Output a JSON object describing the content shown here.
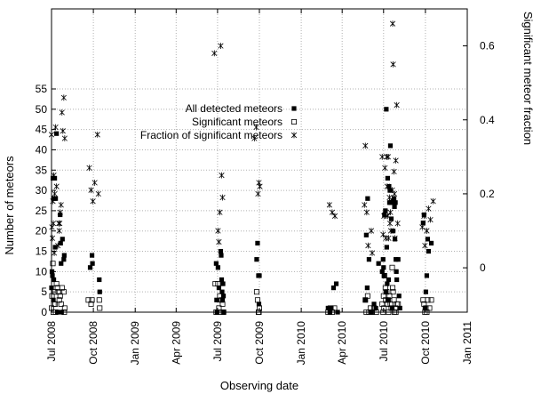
{
  "chart_data": {
    "type": "scatter",
    "xlabel": "Observing date",
    "ylabel": "Number of meteors",
    "y2label": "Significant meteor fraction",
    "x_ticks": [
      {
        "date": "2008-07-01",
        "label": "Jul 2008"
      },
      {
        "date": "2008-10-01",
        "label": "Oct 2008"
      },
      {
        "date": "2009-01-01",
        "label": "Jan 2009"
      },
      {
        "date": "2009-04-01",
        "label": "Apr 2009"
      },
      {
        "date": "2009-07-01",
        "label": "Jul 2009"
      },
      {
        "date": "2009-10-01",
        "label": "Oct 2009"
      },
      {
        "date": "2010-01-01",
        "label": "Jan 2010"
      },
      {
        "date": "2010-04-01",
        "label": "Apr 2010"
      },
      {
        "date": "2010-07-01",
        "label": "Jul 2010"
      },
      {
        "date": "2010-10-01",
        "label": "Oct 2010"
      },
      {
        "date": "2011-01-01",
        "label": "Jan 2011"
      }
    ],
    "xlim": [
      "2008-07-01",
      "2011-01-01"
    ],
    "ylim": [
      0,
      55
    ],
    "y_ticks": [
      0,
      5,
      10,
      15,
      20,
      25,
      30,
      35,
      40,
      45,
      50,
      55
    ],
    "y2_ticks": [
      0,
      0.2,
      0.4,
      0.6
    ],
    "y2_tick_labels": [
      "0",
      "0.2",
      "0.4",
      "0.6"
    ],
    "y2lim": [
      -0.12,
      0.7
    ],
    "grid": true,
    "legend_position": "top-right",
    "legend": [
      "All detected meteors",
      "Significant meteors",
      "Fraction of significant meteors"
    ],
    "series": [
      {
        "name": "All detected meteors",
        "axis": "left",
        "marker": "filled-square",
        "points": [
          [
            "2008-07-01",
            6
          ],
          [
            "2008-07-02",
            10
          ],
          [
            "2008-07-03",
            9
          ],
          [
            "2008-07-04",
            33
          ],
          [
            "2008-07-05",
            3
          ],
          [
            "2008-07-06",
            8
          ],
          [
            "2008-07-07",
            28
          ],
          [
            "2008-07-08",
            33
          ],
          [
            "2008-07-09",
            16
          ],
          [
            "2008-07-10",
            28
          ],
          [
            "2008-07-12",
            44
          ],
          [
            "2008-07-14",
            0
          ],
          [
            "2008-07-20",
            24
          ],
          [
            "2008-07-21",
            17
          ],
          [
            "2008-07-22",
            12
          ],
          [
            "2008-07-23",
            0
          ],
          [
            "2008-07-25",
            18
          ],
          [
            "2008-07-28",
            13
          ],
          [
            "2008-07-29",
            14
          ],
          [
            "2008-09-24",
            11
          ],
          [
            "2008-09-28",
            14
          ],
          [
            "2008-09-29",
            12
          ],
          [
            "2008-10-14",
            8
          ],
          [
            "2008-10-15",
            5
          ],
          [
            "2009-06-28",
            12
          ],
          [
            "2009-06-29",
            3
          ],
          [
            "2009-06-30",
            0
          ],
          [
            "2009-07-02",
            11
          ],
          [
            "2009-07-04",
            6
          ],
          [
            "2009-07-08",
            15
          ],
          [
            "2009-07-09",
            14
          ],
          [
            "2009-07-10",
            8
          ],
          [
            "2009-07-11",
            5
          ],
          [
            "2009-07-12",
            3
          ],
          [
            "2009-07-13",
            7
          ],
          [
            "2009-07-14",
            4
          ],
          [
            "2009-07-15",
            0
          ],
          [
            "2009-09-25",
            13
          ],
          [
            "2009-09-27",
            17
          ],
          [
            "2009-09-29",
            9
          ],
          [
            "2009-09-30",
            2
          ],
          [
            "2009-10-01",
            9
          ],
          [
            "2010-03-01",
            1
          ],
          [
            "2010-03-05",
            0
          ],
          [
            "2010-03-08",
            1
          ],
          [
            "2010-03-13",
            6
          ],
          [
            "2010-03-19",
            7
          ],
          [
            "2010-03-22",
            0
          ],
          [
            "2010-05-22",
            3
          ],
          [
            "2010-05-24",
            19
          ],
          [
            "2010-05-26",
            6
          ],
          [
            "2010-05-27",
            28
          ],
          [
            "2010-05-30",
            13
          ],
          [
            "2010-06-04",
            0
          ],
          [
            "2010-06-10",
            2
          ],
          [
            "2010-06-14",
            1
          ],
          [
            "2010-06-20",
            12
          ],
          [
            "2010-06-28",
            10
          ],
          [
            "2010-06-30",
            13
          ],
          [
            "2010-07-01",
            11
          ],
          [
            "2010-07-02",
            9
          ],
          [
            "2010-07-03",
            24
          ],
          [
            "2010-07-05",
            25
          ],
          [
            "2010-07-06",
            5
          ],
          [
            "2010-07-07",
            50
          ],
          [
            "2010-07-08",
            16
          ],
          [
            "2010-07-09",
            7
          ],
          [
            "2010-07-10",
            33
          ],
          [
            "2010-07-11",
            3
          ],
          [
            "2010-07-12",
            8
          ],
          [
            "2010-07-13",
            31
          ],
          [
            "2010-07-14",
            27
          ],
          [
            "2010-07-15",
            30
          ],
          [
            "2010-07-16",
            41
          ],
          [
            "2010-07-17",
            27
          ],
          [
            "2010-07-18",
            23
          ],
          [
            "2010-07-20",
            1
          ],
          [
            "2010-07-22",
            20
          ],
          [
            "2010-07-24",
            28
          ],
          [
            "2010-07-25",
            26
          ],
          [
            "2010-07-26",
            18
          ],
          [
            "2010-07-27",
            27
          ],
          [
            "2010-07-28",
            13
          ],
          [
            "2010-07-29",
            10
          ],
          [
            "2010-07-30",
            8
          ],
          [
            "2010-08-02",
            13
          ],
          [
            "2010-08-04",
            4
          ],
          [
            "2010-08-06",
            1
          ],
          [
            "2010-09-26",
            22
          ],
          [
            "2010-09-28",
            24
          ],
          [
            "2010-09-30",
            1
          ],
          [
            "2010-10-02",
            5
          ],
          [
            "2010-10-04",
            9
          ],
          [
            "2010-10-06",
            18
          ],
          [
            "2010-10-08",
            15
          ],
          [
            "2010-10-14",
            17
          ]
        ]
      },
      {
        "name": "Significant meteors",
        "axis": "left",
        "marker": "open-square",
        "points": [
          [
            "2008-07-01",
            1
          ],
          [
            "2008-07-02",
            4
          ],
          [
            "2008-07-04",
            12
          ],
          [
            "2008-07-05",
            0
          ],
          [
            "2008-07-06",
            2
          ],
          [
            "2008-07-08",
            5
          ],
          [
            "2008-07-09",
            2
          ],
          [
            "2008-07-10",
            0
          ],
          [
            "2008-07-12",
            7
          ],
          [
            "2008-07-14",
            6
          ],
          [
            "2008-07-16",
            5
          ],
          [
            "2008-07-18",
            3
          ],
          [
            "2008-07-20",
            4
          ],
          [
            "2008-07-22",
            2
          ],
          [
            "2008-07-24",
            6
          ],
          [
            "2008-07-28",
            5
          ],
          [
            "2008-07-29",
            0
          ],
          [
            "2008-07-30",
            1
          ],
          [
            "2008-09-20",
            3
          ],
          [
            "2008-09-26",
            2
          ],
          [
            "2008-09-28",
            3
          ],
          [
            "2008-10-14",
            3
          ],
          [
            "2008-10-15",
            1
          ],
          [
            "2009-06-26",
            7
          ],
          [
            "2009-06-28",
            0
          ],
          [
            "2009-07-02",
            7
          ],
          [
            "2009-07-04",
            1
          ],
          [
            "2009-07-06",
            4
          ],
          [
            "2009-07-08",
            0
          ],
          [
            "2009-07-10",
            3
          ],
          [
            "2009-07-12",
            2
          ],
          [
            "2009-07-14",
            0
          ],
          [
            "2009-09-25",
            5
          ],
          [
            "2009-09-27",
            3
          ],
          [
            "2009-09-29",
            0
          ],
          [
            "2009-09-30",
            0
          ],
          [
            "2009-10-01",
            1
          ],
          [
            "2010-03-01",
            0
          ],
          [
            "2010-03-06",
            1
          ],
          [
            "2010-03-10",
            0
          ],
          [
            "2010-03-15",
            1
          ],
          [
            "2010-05-22",
            3
          ],
          [
            "2010-05-24",
            0
          ],
          [
            "2010-05-27",
            4
          ],
          [
            "2010-05-30",
            0
          ],
          [
            "2010-06-02",
            1
          ],
          [
            "2010-06-06",
            0
          ],
          [
            "2010-06-10",
            1
          ],
          [
            "2010-06-15",
            0
          ],
          [
            "2010-06-28",
            2
          ],
          [
            "2010-06-30",
            0
          ],
          [
            "2010-07-01",
            4
          ],
          [
            "2010-07-02",
            1
          ],
          [
            "2010-07-03",
            9
          ],
          [
            "2010-07-05",
            6
          ],
          [
            "2010-07-06",
            3
          ],
          [
            "2010-07-08",
            5
          ],
          [
            "2010-07-09",
            2
          ],
          [
            "2010-07-11",
            3
          ],
          [
            "2010-07-12",
            0
          ],
          [
            "2010-07-14",
            4
          ],
          [
            "2010-07-16",
            2
          ],
          [
            "2010-07-18",
            1
          ],
          [
            "2010-07-20",
            11
          ],
          [
            "2010-07-21",
            6
          ],
          [
            "2010-07-22",
            5
          ],
          [
            "2010-07-24",
            3
          ],
          [
            "2010-07-25",
            0
          ],
          [
            "2010-07-27",
            1
          ],
          [
            "2010-07-28",
            0
          ],
          [
            "2010-07-30",
            2
          ],
          [
            "2010-08-02",
            2
          ],
          [
            "2010-09-26",
            3
          ],
          [
            "2010-09-28",
            2
          ],
          [
            "2010-09-30",
            0
          ],
          [
            "2010-10-02",
            1
          ],
          [
            "2010-10-04",
            0
          ],
          [
            "2010-10-06",
            3
          ],
          [
            "2010-10-10",
            1
          ],
          [
            "2010-10-14",
            3
          ]
        ]
      },
      {
        "name": "Fraction of significant meteors",
        "axis": "right",
        "marker": "star",
        "points": [
          [
            "2008-07-01",
            0.36
          ],
          [
            "2008-07-02",
            0.11
          ],
          [
            "2008-07-03",
            0.08
          ],
          [
            "2008-07-04",
            0.18
          ],
          [
            "2008-07-05",
            0.12
          ],
          [
            "2008-07-06",
            0.25
          ],
          [
            "2008-07-07",
            0.04
          ],
          [
            "2008-07-08",
            0.2
          ],
          [
            "2008-07-10",
            0.38
          ],
          [
            "2008-07-12",
            0.22
          ],
          [
            "2008-07-15",
            0.06
          ],
          [
            "2008-07-17",
            0.12
          ],
          [
            "2008-07-18",
            0.1
          ],
          [
            "2008-07-19",
            0.12
          ],
          [
            "2008-07-20",
            0.15
          ],
          [
            "2008-07-22",
            0.17
          ],
          [
            "2008-07-24",
            0.42
          ],
          [
            "2008-07-26",
            0.37
          ],
          [
            "2008-07-28",
            0.46
          ],
          [
            "2008-07-30",
            0.35
          ],
          [
            "2008-09-22",
            0.27
          ],
          [
            "2008-09-26",
            0.21
          ],
          [
            "2008-09-30",
            0.18
          ],
          [
            "2008-10-04",
            0.23
          ],
          [
            "2008-10-10",
            0.36
          ],
          [
            "2008-10-12",
            0.2
          ],
          [
            "2009-06-24",
            0.58
          ],
          [
            "2009-07-02",
            0.1
          ],
          [
            "2009-07-04",
            0.07
          ],
          [
            "2009-07-06",
            0.15
          ],
          [
            "2009-07-08",
            0.6
          ],
          [
            "2009-07-10",
            0.25
          ],
          [
            "2009-07-12",
            0.19
          ],
          [
            "2009-09-20",
            0.35
          ],
          [
            "2009-09-24",
            0.38
          ],
          [
            "2009-09-28",
            0.2
          ],
          [
            "2009-09-30",
            0.23
          ],
          [
            "2009-10-02",
            0.22
          ],
          [
            "2010-03-04",
            0.17
          ],
          [
            "2010-03-10",
            0.15
          ],
          [
            "2010-03-16",
            0.14
          ],
          [
            "2010-05-20",
            0.17
          ],
          [
            "2010-05-22",
            0.33
          ],
          [
            "2010-05-25",
            0.15
          ],
          [
            "2010-05-28",
            0.06
          ],
          [
            "2010-06-04",
            0.1
          ],
          [
            "2010-06-06",
            0.04
          ],
          [
            "2010-06-28",
            0.3
          ],
          [
            "2010-06-30",
            0.09
          ],
          [
            "2010-07-02",
            0.14
          ],
          [
            "2010-07-04",
            0.27
          ],
          [
            "2010-07-06",
            0.08
          ],
          [
            "2010-07-08",
            0.3
          ],
          [
            "2010-07-09",
            0.22
          ],
          [
            "2010-07-10",
            0.14
          ],
          [
            "2010-07-11",
            0.3
          ],
          [
            "2010-07-12",
            0.08
          ],
          [
            "2010-07-14",
            0.19
          ],
          [
            "2010-07-15",
            0.12
          ],
          [
            "2010-07-16",
            0.15
          ],
          [
            "2010-07-17",
            0.1
          ],
          [
            "2010-07-18",
            0.18
          ],
          [
            "2010-07-20",
            0.21
          ],
          [
            "2010-07-21",
            0.66
          ],
          [
            "2010-07-22",
            0.55
          ],
          [
            "2010-07-24",
            0.26
          ],
          [
            "2010-07-25",
            0.2
          ],
          [
            "2010-07-26",
            0.08
          ],
          [
            "2010-07-28",
            0.29
          ],
          [
            "2010-07-30",
            0.44
          ],
          [
            "2010-08-01",
            0.12
          ],
          [
            "2010-09-24",
            0.11
          ],
          [
            "2010-09-28",
            0.14
          ],
          [
            "2010-09-30",
            0.06
          ],
          [
            "2010-10-04",
            0.1
          ],
          [
            "2010-10-08",
            0.16
          ],
          [
            "2010-10-12",
            0.13
          ],
          [
            "2010-10-18",
            0.18
          ]
        ]
      }
    ]
  }
}
